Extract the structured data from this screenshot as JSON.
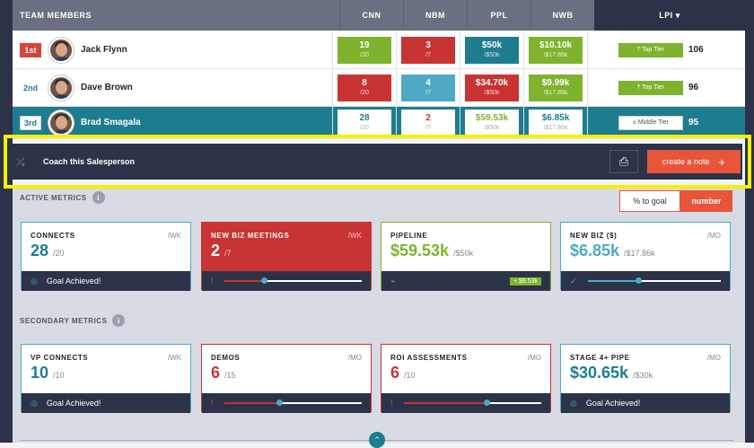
{
  "header": {
    "team_members": "TEAM MEMBERS",
    "metrics": [
      "CNN",
      "NBM",
      "PPL",
      "NWB"
    ],
    "lpi": "LPI ▾"
  },
  "rows": [
    {
      "rank": "1st",
      "name": "Jack Flynn",
      "cells": [
        {
          "value": "19",
          "sub": "/20"
        },
        {
          "value": "3",
          "sub": "/7"
        },
        {
          "value": "$50k",
          "sub": "/$50k"
        },
        {
          "value": "$10.10k",
          "sub": "/$17.86k"
        }
      ],
      "tier": "⤒ Top Tier",
      "lpi": "106"
    },
    {
      "rank": "2nd",
      "name": "Dave Brown",
      "cells": [
        {
          "value": "8",
          "sub": "/20"
        },
        {
          "value": "4",
          "sub": "/7"
        },
        {
          "value": "$34.70k",
          "sub": "/$50k"
        },
        {
          "value": "$9.99k",
          "sub": "/$17.86k"
        }
      ],
      "tier": "⤒ Top Tier",
      "lpi": "96"
    },
    {
      "rank": "3rd",
      "name": "Brad Smagala",
      "cells": [
        {
          "value": "28",
          "sub": "/20"
        },
        {
          "value": "2",
          "sub": "/7"
        },
        {
          "value": "$59.53k",
          "sub": "/$50k"
        },
        {
          "value": "$6.85k",
          "sub": "/$17.86k"
        }
      ],
      "tier": "± Middle Tier",
      "lpi": "95"
    }
  ],
  "coach": {
    "label": "Coach this Salesperson",
    "print_icon": "printer-icon",
    "create_note": "create a note",
    "plus": "+"
  },
  "active": {
    "title": "ACTIVE METRICS",
    "toggle": {
      "a": "% to goal",
      "b": "number"
    },
    "cards": [
      {
        "label": "CONNECTS",
        "period": "/WK",
        "value": "28",
        "total": "/20",
        "footer": "Goal Achieved!"
      },
      {
        "label": "NEW BIZ MEETINGS",
        "period": "/WK",
        "value": "2",
        "total": "/7",
        "progress": 0.29
      },
      {
        "label": "PIPELINE",
        "period": "",
        "value": "$59.53k",
        "total": "/$50k",
        "badge": "+ $9.53k"
      },
      {
        "label": "NEW BIZ ($)",
        "period": "/MO",
        "value": "$6.85k",
        "total": "/$17.86k",
        "progress": 0.38
      }
    ]
  },
  "secondary": {
    "title": "SECONDARY METRICS",
    "cards": [
      {
        "label": "VP CONNECTS",
        "period": "/WK",
        "value": "10",
        "total": "/10",
        "footer": "Goal Achieved!"
      },
      {
        "label": "DEMOS",
        "period": "/MO",
        "value": "6",
        "total": "/15",
        "progress": 0.4
      },
      {
        "label": "ROI ASSESSMENTS",
        "period": "/MO",
        "value": "6",
        "total": "/10",
        "progress": 0.6
      },
      {
        "label": "STAGE 4+ PIPE",
        "period": "/MO",
        "value": "$30.65k",
        "total": "/$30k",
        "footer": "Goal Achieved!"
      }
    ]
  },
  "info_glyph": "i",
  "chevron_glyph": "⌃"
}
